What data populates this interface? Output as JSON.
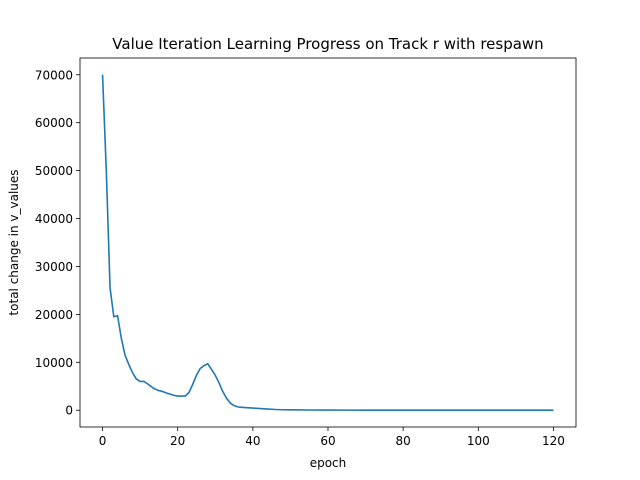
{
  "chart_data": {
    "type": "line",
    "title": "Value Iteration Learning Progress on Track r with respawn",
    "xlabel": "epoch",
    "ylabel": "total change in v_values",
    "xlim": [
      -6,
      126
    ],
    "ylim": [
      -3500,
      73500
    ],
    "xticks": [
      0,
      20,
      40,
      60,
      80,
      100,
      120
    ],
    "yticks": [
      0,
      10000,
      20000,
      30000,
      40000,
      50000,
      60000,
      70000
    ],
    "grid": false,
    "color": "#1f77b4",
    "series": [
      {
        "x": [
          0,
          1,
          2,
          3,
          4,
          5,
          6,
          7,
          8,
          9,
          10,
          11,
          12,
          13,
          14,
          15,
          16,
          17,
          18,
          19,
          20,
          21,
          22,
          23,
          24,
          25,
          26,
          27,
          28,
          29,
          30,
          31,
          32,
          33,
          34,
          35,
          36,
          37,
          38,
          39,
          40,
          42,
          44,
          46,
          48,
          50,
          55,
          60,
          65,
          70,
          80,
          90,
          100,
          110,
          120
        ],
        "y": [
          70000,
          50000,
          25500,
          19500,
          19700,
          15000,
          11500,
          9500,
          7800,
          6500,
          6000,
          6000,
          5500,
          4900,
          4400,
          4100,
          3900,
          3600,
          3350,
          3100,
          2950,
          2950,
          2950,
          3700,
          5400,
          7300,
          8700,
          9300,
          9700,
          8500,
          7300,
          5700,
          3900,
          2500,
          1500,
          950,
          700,
          600,
          550,
          500,
          450,
          350,
          250,
          150,
          100,
          80,
          50,
          30,
          20,
          15,
          10,
          8,
          5,
          3,
          2
        ]
      }
    ]
  }
}
